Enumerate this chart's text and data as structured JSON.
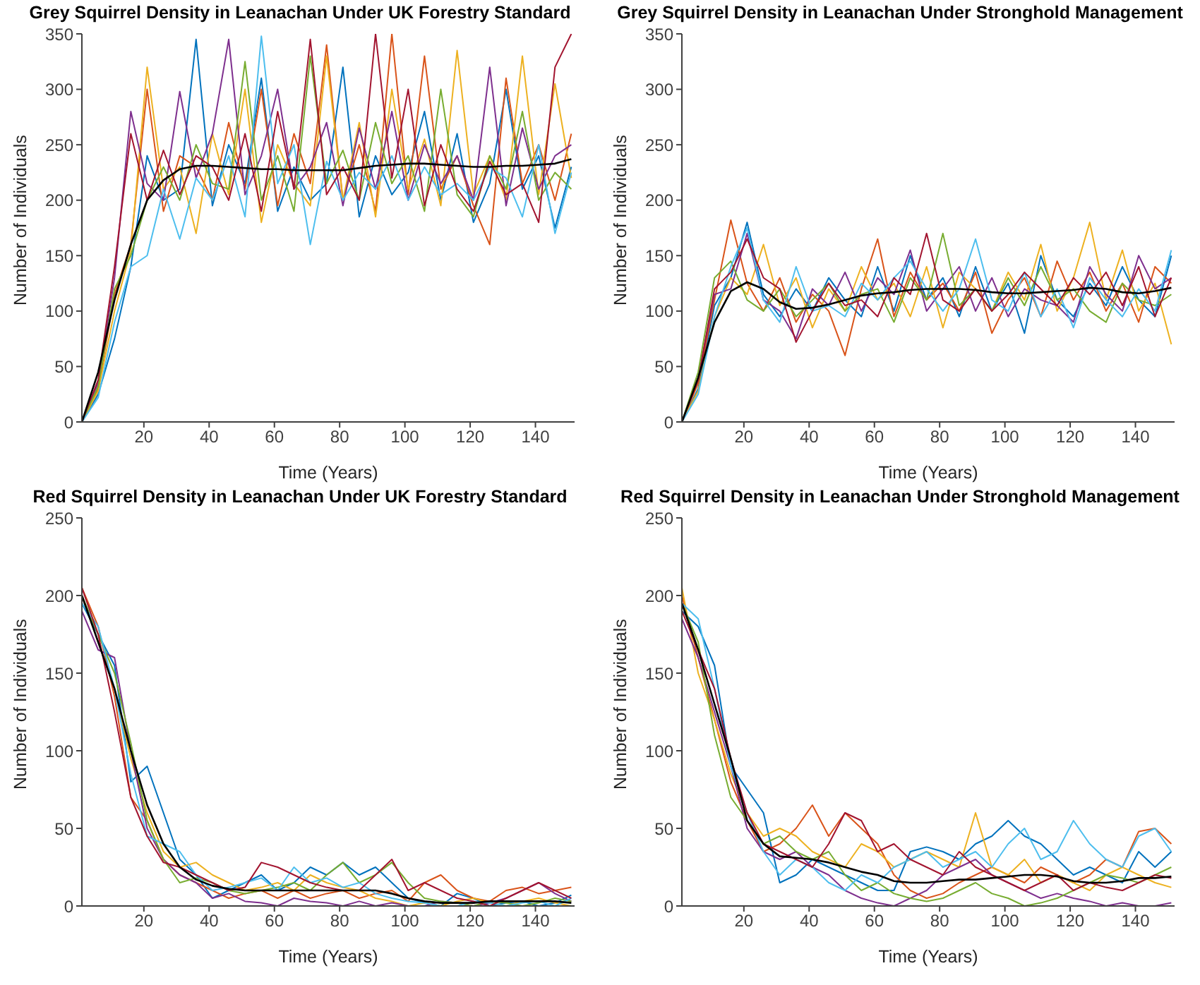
{
  "chart_data": [
    {
      "type": "line",
      "title": "Grey Squirrel Density in Leanachan Under UK Forestry Standard",
      "xlabel": "Time (Years)",
      "ylabel": "Number of Individuals",
      "xlim": [
        1,
        152
      ],
      "xticks": [
        20,
        40,
        60,
        80,
        100,
        120,
        140
      ],
      "ylim": [
        0,
        350
      ],
      "yticks": [
        0,
        50,
        100,
        150,
        200,
        250,
        300,
        350
      ],
      "x": [
        1,
        6,
        11,
        16,
        21,
        26,
        31,
        36,
        41,
        46,
        51,
        56,
        61,
        66,
        71,
        76,
        81,
        86,
        91,
        96,
        101,
        106,
        111,
        116,
        121,
        126,
        131,
        136,
        141,
        146,
        151
      ],
      "series": [
        {
          "color": "#0072bd",
          "values": [
            0,
            25,
            75,
            140,
            240,
            200,
            210,
            345,
            195,
            250,
            215,
            310,
            190,
            230,
            200,
            215,
            320,
            185,
            240,
            205,
            225,
            280,
            200,
            260,
            180,
            215,
            300,
            210,
            240,
            175,
            230
          ]
        },
        {
          "color": "#d95319",
          "values": [
            0,
            30,
            115,
            160,
            300,
            190,
            240,
            230,
            200,
            270,
            210,
            300,
            195,
            260,
            215,
            340,
            200,
            250,
            190,
            350,
            205,
            330,
            210,
            240,
            195,
            160,
            310,
            215,
            250,
            200,
            260
          ]
        },
        {
          "color": "#edb120",
          "values": [
            0,
            28,
            100,
            155,
            320,
            210,
            230,
            170,
            260,
            205,
            300,
            180,
            250,
            215,
            195,
            330,
            200,
            270,
            185,
            300,
            210,
            255,
            195,
            335,
            205,
            240,
            200,
            330,
            205,
            305,
            220
          ]
        },
        {
          "color": "#7e2f8e",
          "values": [
            0,
            35,
            130,
            280,
            215,
            200,
            298,
            220,
            260,
            345,
            205,
            240,
            300,
            210,
            230,
            270,
            195,
            265,
            210,
            280,
            200,
            250,
            215,
            240,
            200,
            320,
            195,
            265,
            210,
            240,
            250
          ]
        },
        {
          "color": "#77ac30",
          "values": [
            0,
            32,
            120,
            150,
            200,
            230,
            200,
            250,
            215,
            210,
            325,
            200,
            240,
            190,
            330,
            215,
            245,
            200,
            270,
            215,
            240,
            190,
            300,
            205,
            185,
            240,
            210,
            280,
            200,
            225,
            210
          ]
        },
        {
          "color": "#4dbeee",
          "values": [
            0,
            22,
            90,
            140,
            150,
            210,
            165,
            220,
            200,
            240,
            185,
            348,
            215,
            250,
            160,
            235,
            200,
            225,
            210,
            240,
            200,
            230,
            205,
            215,
            200,
            230,
            220,
            185,
            250,
            170,
            225
          ]
        },
        {
          "color": "#a2142f",
          "values": [
            0,
            38,
            140,
            260,
            200,
            245,
            205,
            240,
            230,
            200,
            260,
            190,
            280,
            210,
            345,
            205,
            230,
            200,
            350,
            220,
            300,
            195,
            250,
            210,
            190,
            235,
            205,
            215,
            180,
            320,
            350
          ]
        },
        {
          "color": "#000000",
          "values": [
            0,
            45,
            110,
            160,
            200,
            218,
            228,
            231,
            231,
            230,
            229,
            228,
            228,
            227,
            227,
            227,
            227,
            229,
            231,
            232,
            233,
            233,
            232,
            231,
            230,
            230,
            231,
            231,
            232,
            233,
            237
          ]
        }
      ]
    },
    {
      "type": "line",
      "title": "Grey Squirrel Density in Leanachan Under Stronghold Management",
      "xlabel": "Time (Years)",
      "ylabel": "Number of Individuals",
      "xlim": [
        1,
        152
      ],
      "xticks": [
        20,
        40,
        60,
        80,
        100,
        120,
        140
      ],
      "ylim": [
        0,
        350
      ],
      "yticks": [
        0,
        50,
        100,
        150,
        200,
        250,
        300,
        350
      ],
      "x": [
        1,
        6,
        11,
        16,
        21,
        26,
        31,
        36,
        41,
        46,
        51,
        56,
        61,
        66,
        71,
        76,
        81,
        86,
        91,
        96,
        101,
        106,
        111,
        116,
        121,
        126,
        131,
        136,
        141,
        146,
        151
      ],
      "series": [
        {
          "color": "#0072bd",
          "values": [
            0,
            30,
            105,
            130,
            180,
            115,
            95,
            120,
            100,
            130,
            110,
            95,
            140,
            100,
            150,
            110,
            130,
            95,
            140,
            100,
            125,
            80,
            150,
            110,
            95,
            125,
            105,
            140,
            110,
            95,
            150
          ]
        },
        {
          "color": "#d95319",
          "values": [
            0,
            35,
            110,
            182,
            125,
            100,
            130,
            90,
            115,
            100,
            60,
            120,
            165,
            95,
            135,
            110,
            125,
            100,
            135,
            80,
            110,
            130,
            95,
            145,
            110,
            135,
            100,
            125,
            90,
            140,
            125
          ]
        },
        {
          "color": "#edb120",
          "values": [
            0,
            28,
            95,
            130,
            115,
            160,
            105,
            130,
            85,
            120,
            100,
            140,
            110,
            125,
            95,
            140,
            85,
            135,
            120,
            100,
            135,
            110,
            160,
            100,
            130,
            180,
            110,
            155,
            100,
            125,
            70
          ]
        },
        {
          "color": "#7e2f8e",
          "values": [
            0,
            40,
            115,
            120,
            170,
            110,
            100,
            75,
            120,
            105,
            135,
            100,
            130,
            115,
            155,
            100,
            120,
            140,
            100,
            130,
            95,
            120,
            110,
            105,
            90,
            140,
            115,
            100,
            150,
            120,
            130
          ]
        },
        {
          "color": "#77ac30",
          "values": [
            0,
            45,
            130,
            145,
            110,
            100,
            120,
            95,
            110,
            125,
            100,
            115,
            120,
            90,
            130,
            110,
            170,
            105,
            120,
            100,
            130,
            105,
            140,
            110,
            120,
            100,
            90,
            125,
            110,
            105,
            115
          ]
        },
        {
          "color": "#4dbeee",
          "values": [
            0,
            25,
            95,
            140,
            175,
            110,
            90,
            140,
            100,
            105,
            95,
            125,
            110,
            130,
            145,
            120,
            100,
            120,
            165,
            110,
            100,
            135,
            95,
            120,
            85,
            130,
            110,
            95,
            120,
            100,
            155
          ]
        },
        {
          "color": "#a2142f",
          "values": [
            0,
            38,
            120,
            135,
            165,
            130,
            120,
            72,
            100,
            125,
            105,
            110,
            95,
            130,
            115,
            170,
            110,
            100,
            120,
            100,
            115,
            135,
            120,
            105,
            130,
            115,
            135,
            105,
            140,
            95,
            130
          ]
        },
        {
          "color": "#000000",
          "values": [
            0,
            40,
            90,
            118,
            126,
            120,
            108,
            102,
            103,
            106,
            110,
            114,
            116,
            117,
            119,
            120,
            120,
            120,
            119,
            117,
            116,
            116,
            117,
            118,
            119,
            121,
            120,
            117,
            116,
            118,
            121
          ]
        }
      ]
    },
    {
      "type": "line",
      "title": "Red Squirrel Density in Leanachan Under UK Forestry Standard",
      "xlabel": "Time (Years)",
      "ylabel": "Number of Individuals",
      "xlim": [
        1,
        152
      ],
      "xticks": [
        20,
        40,
        60,
        80,
        100,
        120,
        140
      ],
      "ylim": [
        0,
        250
      ],
      "yticks": [
        0,
        50,
        100,
        150,
        200,
        250
      ],
      "x": [
        1,
        6,
        11,
        16,
        21,
        26,
        31,
        36,
        41,
        46,
        51,
        56,
        61,
        66,
        71,
        76,
        81,
        86,
        91,
        96,
        101,
        106,
        111,
        116,
        121,
        126,
        131,
        136,
        141,
        146,
        151
      ],
      "series": [
        {
          "color": "#0072bd",
          "values": [
            195,
            175,
            155,
            80,
            90,
            60,
            30,
            20,
            5,
            10,
            15,
            20,
            10,
            15,
            25,
            20,
            28,
            20,
            25,
            15,
            5,
            2,
            0,
            8,
            5,
            0,
            2,
            3,
            0,
            2,
            7
          ]
        },
        {
          "color": "#d95319",
          "values": [
            205,
            180,
            135,
            70,
            55,
            30,
            20,
            15,
            10,
            5,
            8,
            10,
            5,
            10,
            5,
            8,
            10,
            5,
            8,
            10,
            3,
            15,
            20,
            10,
            5,
            3,
            10,
            12,
            8,
            10,
            12
          ]
        },
        {
          "color": "#edb120",
          "values": [
            200,
            170,
            140,
            95,
            60,
            35,
            25,
            28,
            20,
            15,
            10,
            12,
            15,
            10,
            20,
            15,
            12,
            10,
            5,
            3,
            0,
            2,
            0,
            3,
            5,
            2,
            0,
            3,
            5,
            2,
            0
          ]
        },
        {
          "color": "#7e2f8e",
          "values": [
            190,
            165,
            160,
            100,
            50,
            30,
            20,
            15,
            5,
            8,
            3,
            2,
            0,
            5,
            3,
            2,
            0,
            3,
            0,
            2,
            0,
            0,
            3,
            2,
            0,
            2,
            5,
            10,
            15,
            8,
            3
          ]
        },
        {
          "color": "#77ac30",
          "values": [
            200,
            175,
            150,
            105,
            55,
            30,
            15,
            18,
            15,
            10,
            8,
            10,
            12,
            15,
            10,
            20,
            28,
            15,
            20,
            28,
            15,
            5,
            3,
            2,
            0,
            3,
            2,
            0,
            2,
            5,
            3
          ]
        },
        {
          "color": "#4dbeee",
          "values": [
            195,
            180,
            140,
            85,
            45,
            40,
            35,
            20,
            10,
            12,
            15,
            18,
            10,
            25,
            15,
            18,
            12,
            15,
            8,
            5,
            3,
            2,
            0,
            0,
            3,
            2,
            0,
            2,
            3,
            0,
            5
          ]
        },
        {
          "color": "#a2142f",
          "values": [
            205,
            175,
            125,
            70,
            45,
            28,
            25,
            20,
            15,
            10,
            12,
            28,
            25,
            20,
            15,
            12,
            10,
            10,
            20,
            30,
            10,
            15,
            10,
            5,
            3,
            0,
            5,
            10,
            15,
            10,
            5
          ]
        },
        {
          "color": "#000000",
          "values": [
            200,
            170,
            140,
            100,
            65,
            40,
            25,
            17,
            13,
            11,
            10,
            10,
            10,
            10,
            10,
            10,
            10,
            10,
            10,
            8,
            5,
            3,
            2,
            2,
            2,
            3,
            3,
            3,
            3,
            3,
            2
          ]
        }
      ]
    },
    {
      "type": "line",
      "title": "Red Squirrel Density in Leanachan Under Stronghold Management",
      "xlabel": "Time (Years)",
      "ylabel": "Number of Individuals",
      "xlim": [
        1,
        152
      ],
      "xticks": [
        20,
        40,
        60,
        80,
        100,
        120,
        140
      ],
      "ylim": [
        0,
        250
      ],
      "yticks": [
        0,
        50,
        100,
        150,
        200,
        250
      ],
      "x": [
        1,
        6,
        11,
        16,
        21,
        26,
        31,
        36,
        41,
        46,
        51,
        56,
        61,
        66,
        71,
        76,
        81,
        86,
        91,
        96,
        101,
        106,
        111,
        116,
        121,
        126,
        131,
        136,
        141,
        146,
        151
      ],
      "series": [
        {
          "color": "#0072bd",
          "values": [
            190,
            180,
            155,
            90,
            75,
            60,
            15,
            20,
            30,
            25,
            20,
            15,
            10,
            10,
            35,
            38,
            35,
            30,
            40,
            45,
            55,
            45,
            40,
            30,
            20,
            25,
            20,
            15,
            35,
            25,
            35
          ]
        },
        {
          "color": "#d95319",
          "values": [
            200,
            160,
            120,
            80,
            55,
            35,
            40,
            50,
            65,
            45,
            60,
            50,
            40,
            20,
            10,
            5,
            8,
            15,
            20,
            25,
            20,
            15,
            25,
            20,
            15,
            20,
            30,
            25,
            48,
            50,
            40
          ]
        },
        {
          "color": "#edb120",
          "values": [
            205,
            150,
            120,
            85,
            60,
            45,
            50,
            45,
            35,
            30,
            25,
            40,
            35,
            25,
            30,
            35,
            30,
            25,
            60,
            25,
            20,
            30,
            15,
            20,
            15,
            10,
            20,
            25,
            20,
            15,
            12
          ]
        },
        {
          "color": "#7e2f8e",
          "values": [
            185,
            160,
            125,
            90,
            50,
            35,
            30,
            35,
            25,
            20,
            10,
            5,
            2,
            0,
            5,
            10,
            20,
            25,
            30,
            20,
            15,
            10,
            5,
            8,
            5,
            3,
            0,
            2,
            0,
            0,
            2
          ]
        },
        {
          "color": "#77ac30",
          "values": [
            195,
            170,
            110,
            70,
            55,
            40,
            45,
            35,
            30,
            35,
            20,
            10,
            15,
            8,
            5,
            3,
            5,
            10,
            15,
            8,
            5,
            0,
            2,
            5,
            10,
            15,
            20,
            18,
            15,
            20,
            25
          ]
        },
        {
          "color": "#4dbeee",
          "values": [
            195,
            185,
            140,
            90,
            60,
            35,
            20,
            30,
            25,
            15,
            10,
            20,
            15,
            25,
            30,
            35,
            25,
            30,
            35,
            25,
            40,
            50,
            30,
            35,
            55,
            40,
            30,
            25,
            45,
            50,
            35
          ]
        },
        {
          "color": "#a2142f",
          "values": [
            190,
            165,
            140,
            95,
            60,
            40,
            35,
            30,
            25,
            40,
            60,
            55,
            35,
            40,
            30,
            25,
            20,
            35,
            25,
            20,
            15,
            10,
            15,
            20,
            10,
            15,
            12,
            10,
            15,
            20,
            18
          ]
        },
        {
          "color": "#000000",
          "values": [
            195,
            165,
            130,
            95,
            55,
            40,
            32,
            31,
            30,
            28,
            25,
            22,
            20,
            16,
            15,
            15,
            16,
            17,
            17,
            18,
            19,
            20,
            20,
            19,
            16,
            15,
            15,
            16,
            18,
            18,
            19
          ]
        }
      ]
    }
  ]
}
